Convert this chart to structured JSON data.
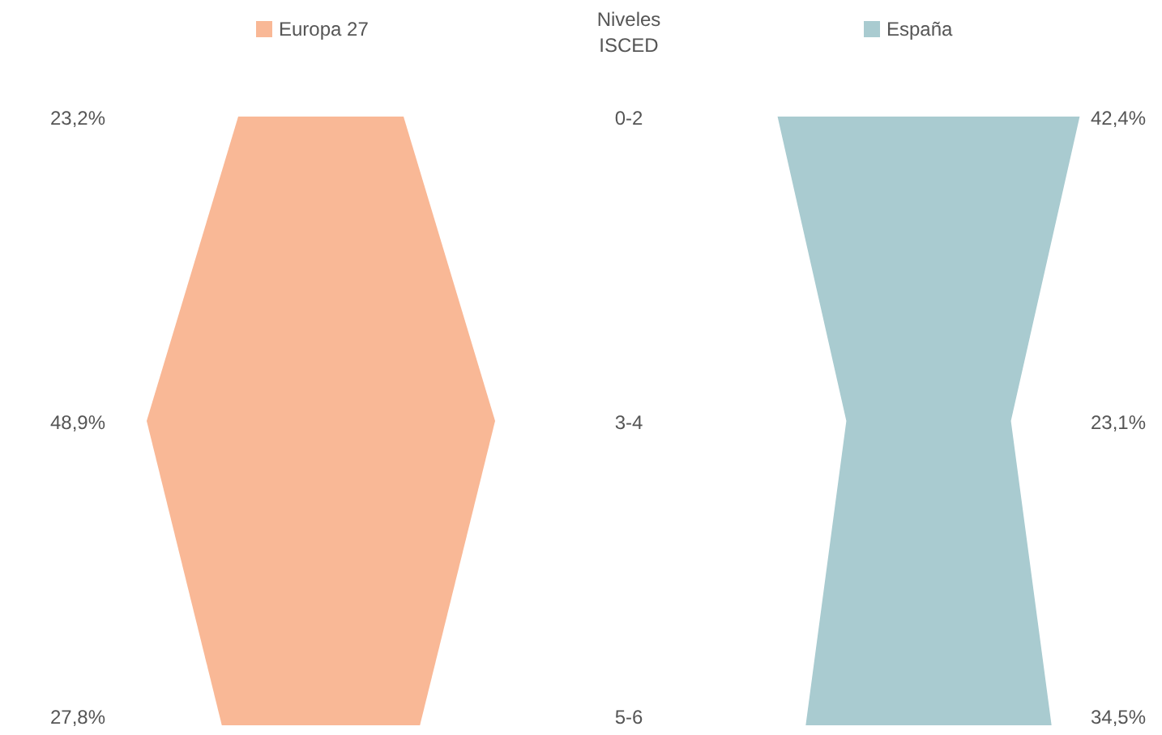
{
  "chart_data": {
    "type": "other",
    "xlabel": "Niveles ISCED",
    "categories": [
      "0-2",
      "3-4",
      "5-6"
    ],
    "data_labels": true,
    "series": [
      {
        "name": "Europa 27",
        "color": "#f9b896",
        "values": [
          23.2,
          48.9,
          27.8
        ],
        "value_labels": [
          "23,2%",
          "48,9%",
          "27,8%"
        ]
      },
      {
        "name": "España",
        "color": "#a9cbd0",
        "values": [
          42.4,
          23.1,
          34.5
        ],
        "value_labels": [
          "42,4%",
          "23,1%",
          "34,5%"
        ]
      }
    ]
  }
}
